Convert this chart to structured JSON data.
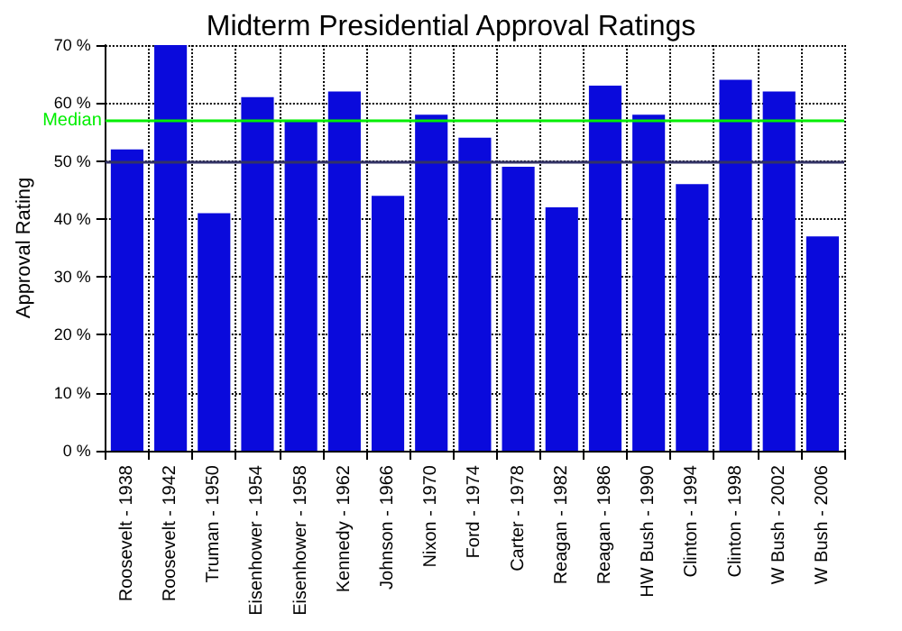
{
  "chart_data": {
    "type": "bar",
    "title": "Midterm Presidential Approval Ratings",
    "ylabel": "Approval Rating",
    "categories": [
      "Roosevelt - 1938",
      "Roosevelt - 1942",
      "Truman - 1950",
      "Eisenhower - 1954",
      "Eisenhower - 1958",
      "Kennedy - 1962",
      "Johnson - 1966",
      "Nixon - 1970",
      "Ford - 1974",
      "Carter - 1978",
      "Reagan - 1982",
      "Reagan - 1986",
      "HW Bush - 1990",
      "Clinton - 1994",
      "Clinton - 1998",
      "W Bush - 2002",
      "W Bush - 2006"
    ],
    "series": [
      {
        "color": "#0a0adc",
        "values": [
          52,
          70,
          41,
          61,
          57,
          62,
          44,
          58,
          54,
          49,
          42,
          63,
          58,
          46,
          64,
          62,
          37
        ]
      }
    ],
    "ylim": [
      0,
      70
    ],
    "yticks": [
      {
        "value": 0,
        "label": "0 %"
      },
      {
        "value": 10,
        "label": "10 %"
      },
      {
        "value": 20,
        "label": "20 %"
      },
      {
        "value": 30,
        "label": "30 %"
      },
      {
        "value": 40,
        "label": "40 %"
      },
      {
        "value": 50,
        "label": "50 %"
      },
      {
        "value": 60,
        "label": "60 %"
      },
      {
        "value": 70,
        "label": "70 %"
      }
    ],
    "ref_lines": [
      {
        "axis": "y",
        "value": 57,
        "label": "Median",
        "color": "#00ee00"
      },
      {
        "axis": "y",
        "value": 50,
        "color": "#333366"
      }
    ],
    "grid": true
  }
}
